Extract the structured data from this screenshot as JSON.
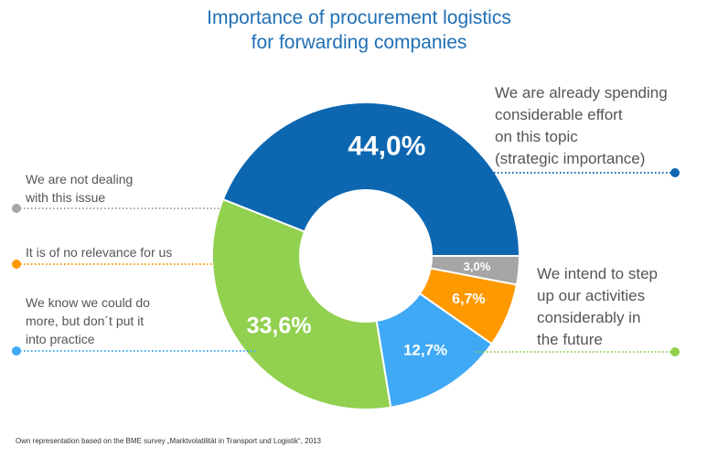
{
  "chart_data": {
    "type": "pie",
    "title_lines": [
      "Importance of procurement logistics",
      "for forwarding companies"
    ],
    "slices": [
      {
        "key": "strategic",
        "value": 44.0,
        "value_label": "44,0%",
        "color": "#0d67b0",
        "label_lines": [
          "We are already spending",
          "considerable effort",
          "on this topic",
          "(strategic importance)"
        ]
      },
      {
        "key": "step-up",
        "value": 33.6,
        "value_label": "33,6%",
        "color": "#92d050",
        "label_lines": [
          "We intend to step",
          "up our activities",
          "considerably in",
          "the future"
        ]
      },
      {
        "key": "know-more",
        "value": 12.7,
        "value_label": "12,7%",
        "color": "#3fa9f5",
        "label_lines": [
          "We know we could do",
          "more, but don´t put it",
          "into practice"
        ]
      },
      {
        "key": "no-relevance",
        "value": 6.7,
        "value_label": "6,7%",
        "color": "#ff9900",
        "label_lines": [
          "It is of no relevance for us"
        ]
      },
      {
        "key": "not-dealing",
        "value": 3.0,
        "value_label": "3,0%",
        "color": "#a6a6a6",
        "label_lines": [
          "We are not dealing",
          "with this issue"
        ]
      }
    ]
  },
  "footer": {
    "source": "Own representation based on the BME survey „Marktvolatilität in Transport und Logistik“, 2013"
  }
}
